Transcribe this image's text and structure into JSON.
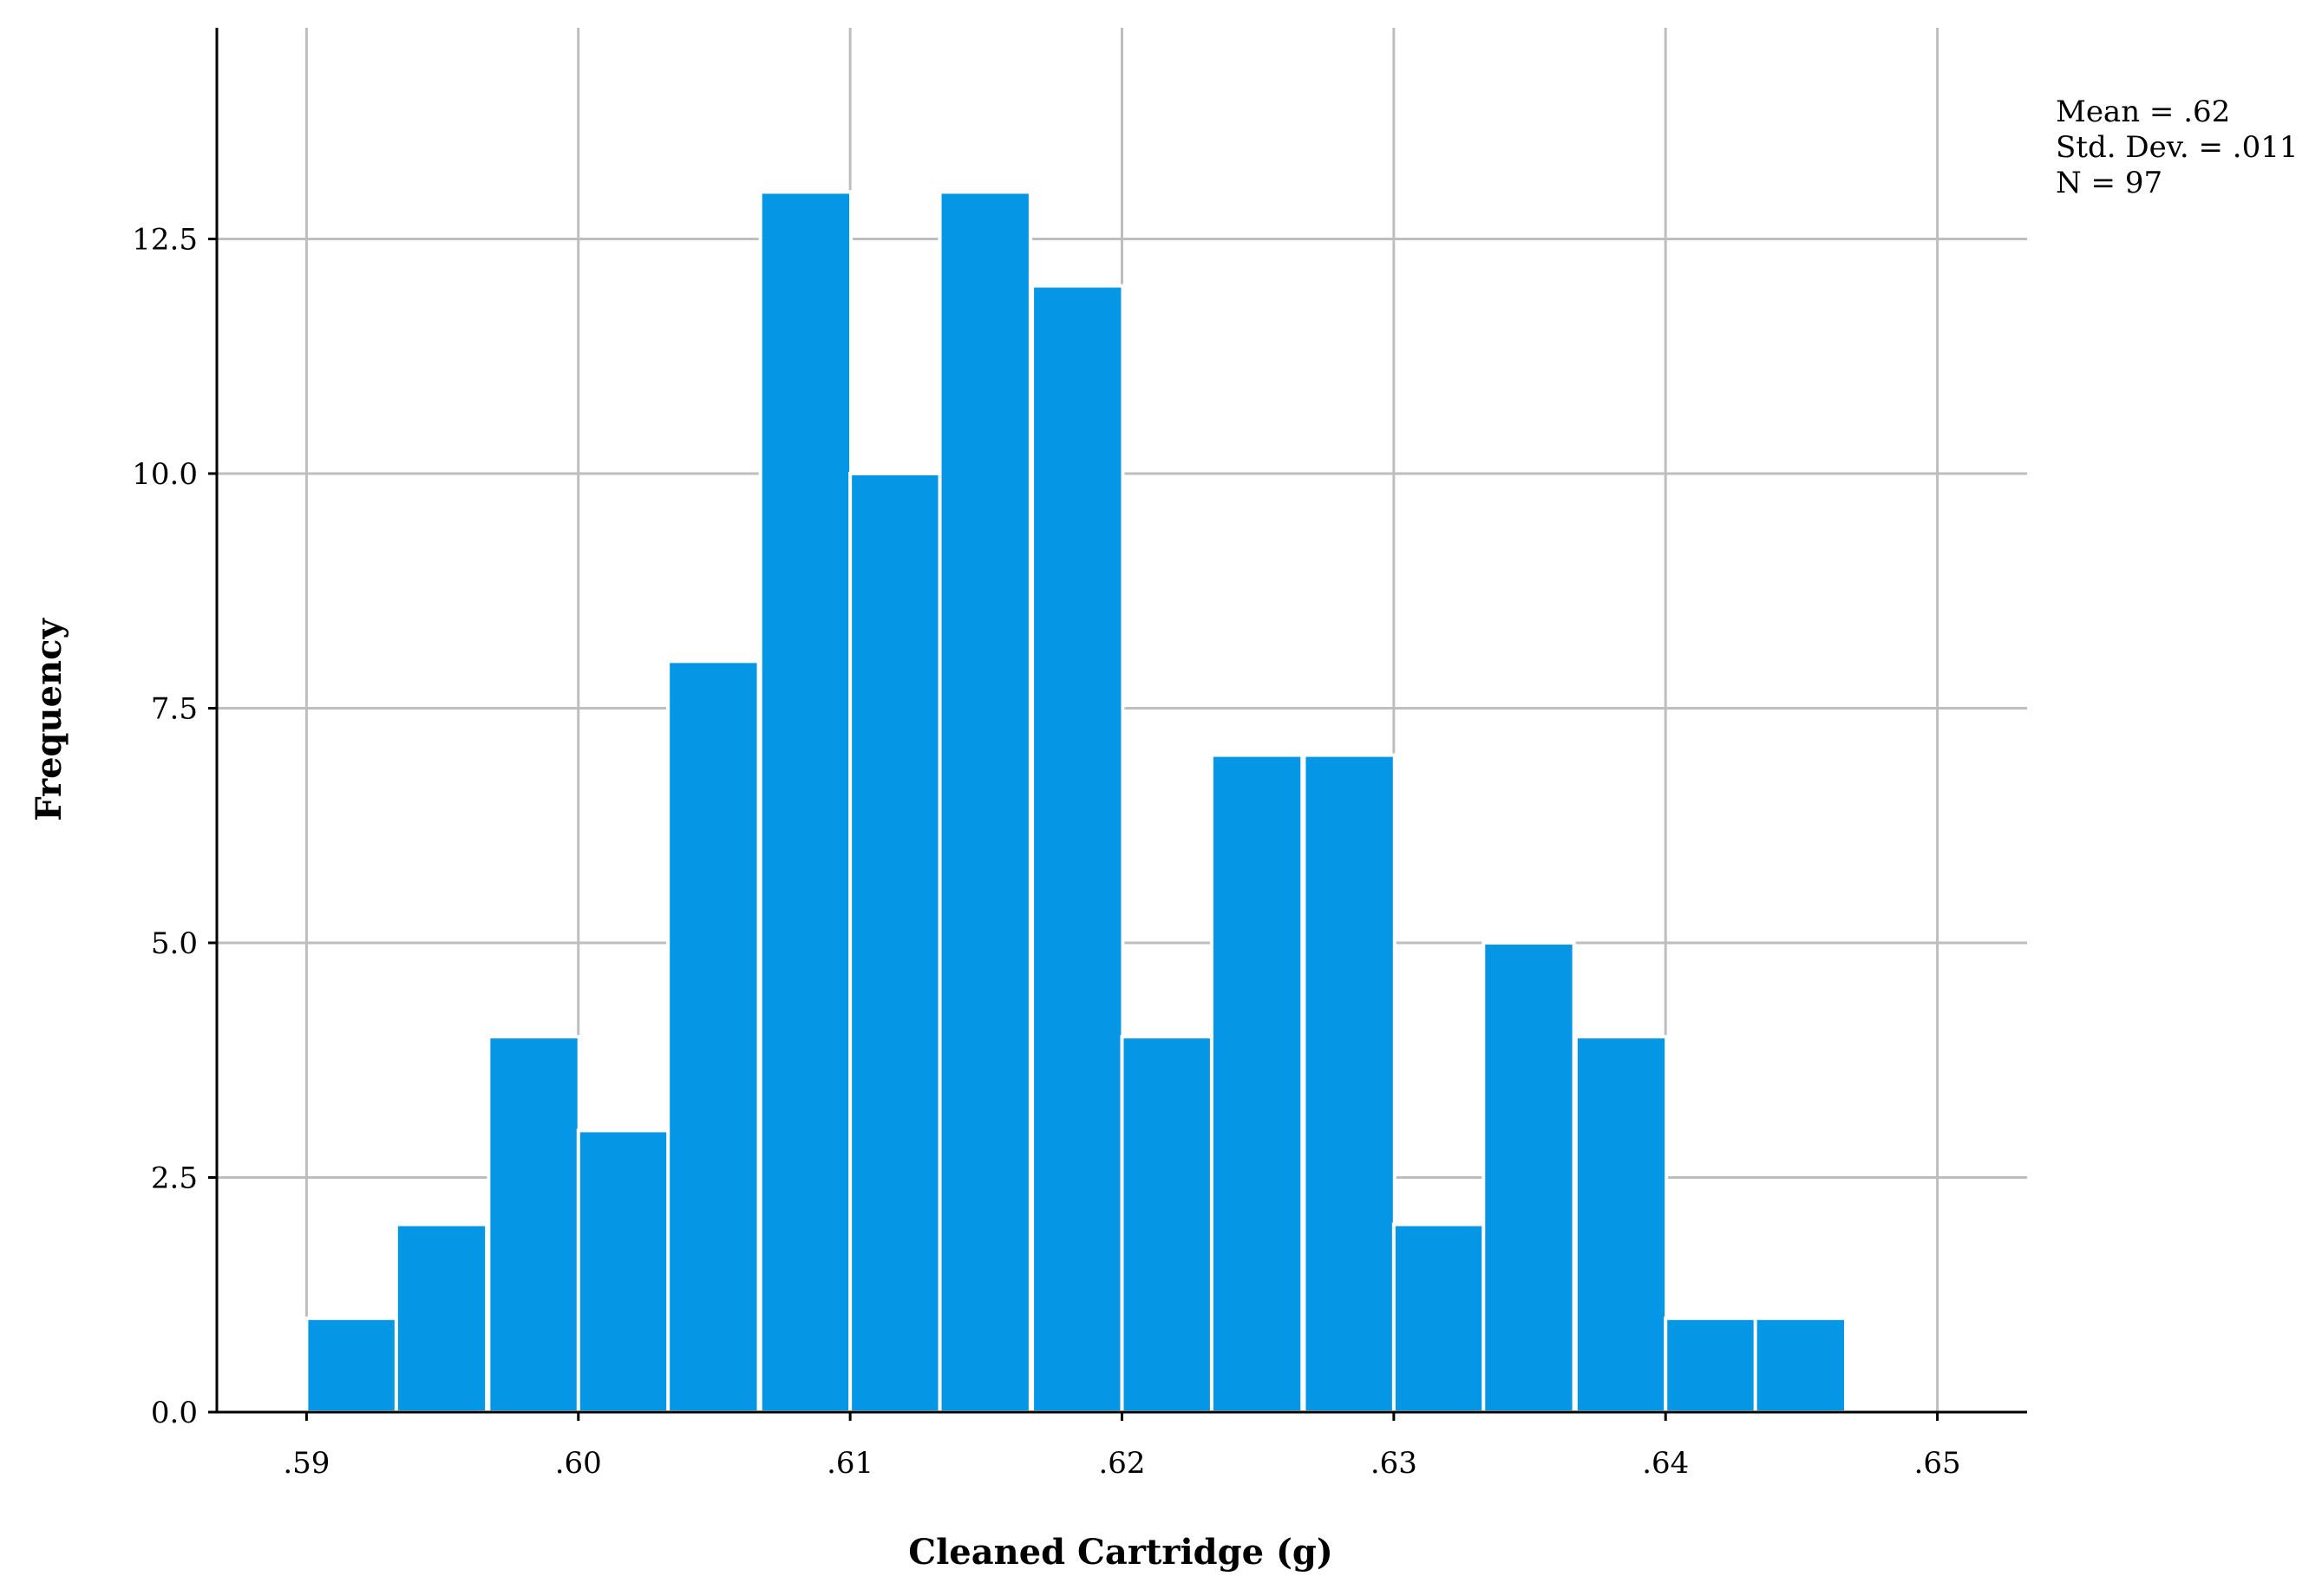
{
  "chart_data": {
    "type": "bar",
    "title": "",
    "xlabel": "Cleaned Cartridge (g)",
    "ylabel": "Frequency",
    "bin_width": 0.00333,
    "bins": [
      {
        "start": 0.59,
        "value": 1
      },
      {
        "start": 0.5933,
        "value": 2
      },
      {
        "start": 0.5967,
        "value": 4
      },
      {
        "start": 0.6,
        "value": 3
      },
      {
        "start": 0.6033,
        "value": 8
      },
      {
        "start": 0.6067,
        "value": 13
      },
      {
        "start": 0.61,
        "value": 10
      },
      {
        "start": 0.6133,
        "value": 13
      },
      {
        "start": 0.6167,
        "value": 12
      },
      {
        "start": 0.62,
        "value": 4
      },
      {
        "start": 0.6233,
        "value": 7
      },
      {
        "start": 0.6267,
        "value": 7
      },
      {
        "start": 0.63,
        "value": 2
      },
      {
        "start": 0.6333,
        "value": 5
      },
      {
        "start": 0.6367,
        "value": 4
      },
      {
        "start": 0.64,
        "value": 1
      },
      {
        "start": 0.6433,
        "value": 1
      }
    ],
    "xlim": [
      0.5867,
      0.6533
    ],
    "ylim": [
      0,
      14.75
    ],
    "x_ticks": [
      {
        "value": 0.59,
        "label": ".59"
      },
      {
        "value": 0.6,
        "label": ".60"
      },
      {
        "value": 0.61,
        "label": ".61"
      },
      {
        "value": 0.62,
        "label": ".62"
      },
      {
        "value": 0.63,
        "label": ".63"
      },
      {
        "value": 0.64,
        "label": ".64"
      },
      {
        "value": 0.65,
        "label": ".65"
      }
    ],
    "y_ticks": [
      {
        "value": 0,
        "label": "0.0"
      },
      {
        "value": 2.5,
        "label": "2.5"
      },
      {
        "value": 5,
        "label": "5.0"
      },
      {
        "value": 7.5,
        "label": "7.5"
      },
      {
        "value": 10,
        "label": "10.0"
      },
      {
        "value": 12.5,
        "label": "12.5"
      }
    ],
    "grid": true,
    "stats": [
      "Mean = .62",
      "Std. Dev. = .011",
      "N = 97"
    ],
    "legend_position": "top-right"
  },
  "colors": {
    "bar_fill": "#0696E6",
    "bar_edge": "#ffffff",
    "grid": "#BEBEBE",
    "axis": "#000000"
  }
}
